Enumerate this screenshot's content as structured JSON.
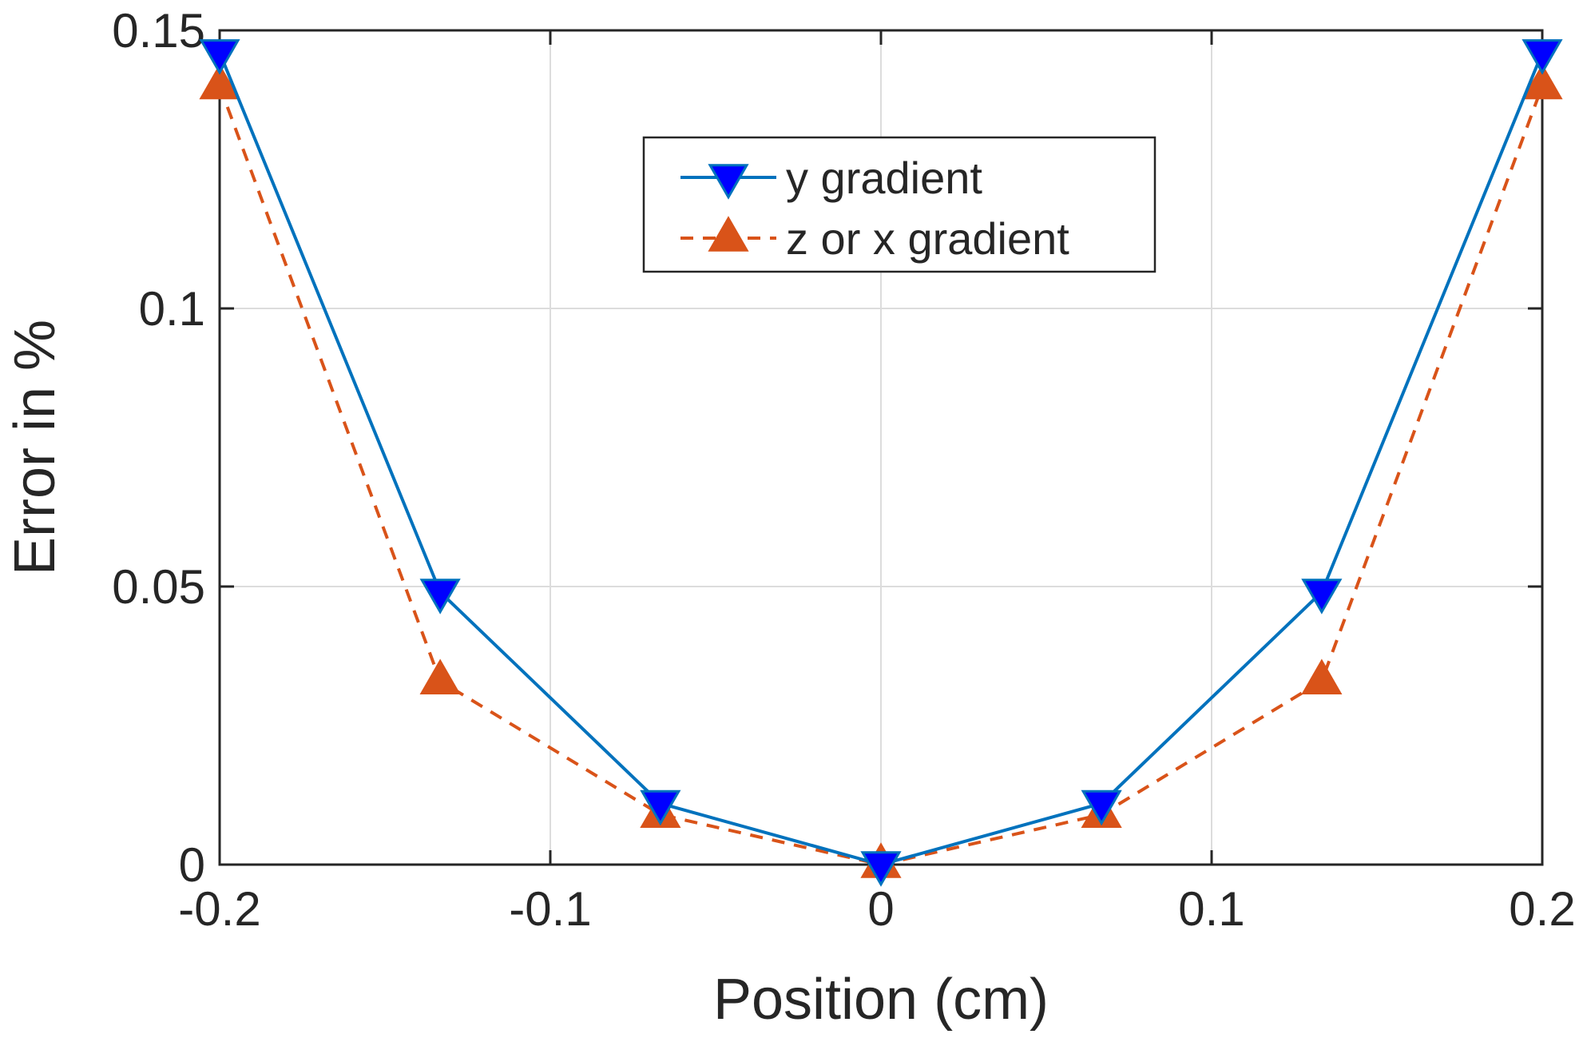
{
  "chart_data": {
    "type": "line",
    "title": "",
    "xlabel": "Position (cm)",
    "ylabel": "Error in %",
    "xlim": [
      -0.2,
      0.2
    ],
    "ylim": [
      0,
      0.15
    ],
    "xticks": [
      -0.2,
      -0.1,
      0,
      0.1,
      0.2
    ],
    "xtick_labels": [
      "-0.2",
      "-0.1",
      "0",
      "0.1",
      "0.2"
    ],
    "yticks": [
      0,
      0.05,
      0.1,
      0.15
    ],
    "ytick_labels": [
      "0",
      "0.05",
      "0.1",
      "0.15"
    ],
    "grid": true,
    "legend_position": "top-center",
    "x": [
      -0.2,
      -0.1333,
      -0.0667,
      0,
      0.0667,
      0.1333,
      0.2
    ],
    "series": [
      {
        "name": "y gradient",
        "values": [
          0.146,
          0.049,
          0.011,
          0.0,
          0.011,
          0.049,
          0.146
        ],
        "color": "#0072BD",
        "marker_color": "#0000FF",
        "line_style": "solid",
        "marker": "triangle-down"
      },
      {
        "name": "z or x gradient",
        "values": [
          0.14,
          0.033,
          0.009,
          0.0,
          0.009,
          0.033,
          0.14
        ],
        "color": "#D95319",
        "marker_color": "#D95319",
        "line_style": "dashed",
        "marker": "triangle-up"
      }
    ]
  }
}
